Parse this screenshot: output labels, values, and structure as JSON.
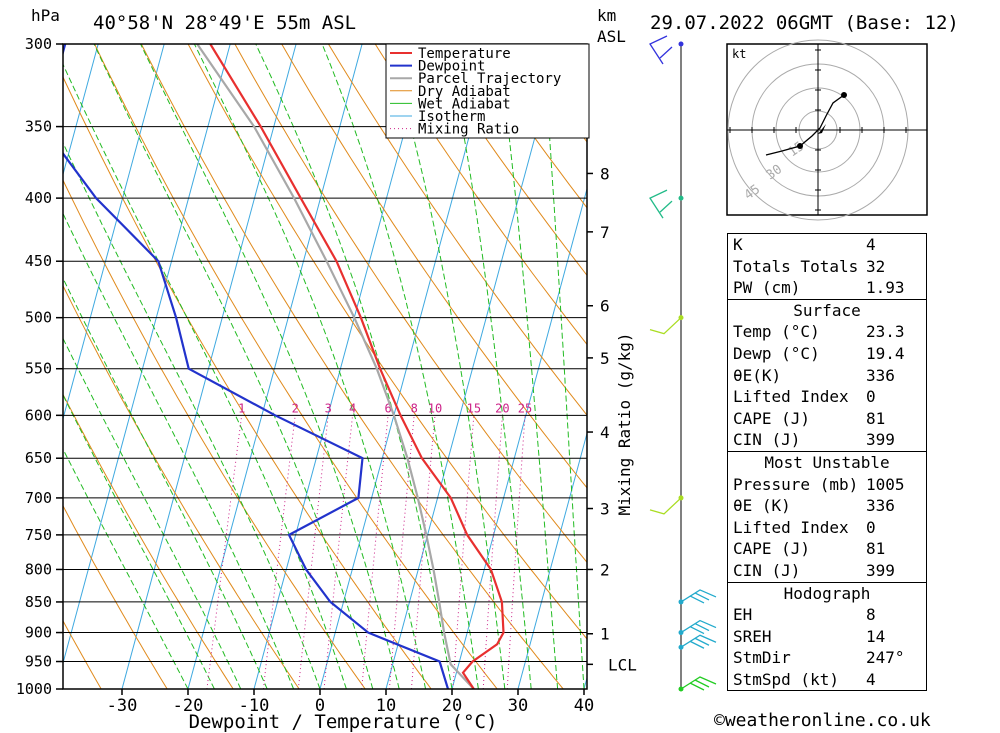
{
  "header": {
    "location": "40°58'N  28°49'E  55m  ASL",
    "datetime": "29.07.2022  06GMT  (Base: 12)",
    "pressure_unit": "hPa",
    "height_unit_top": "km",
    "height_unit_bottom": "ASL"
  },
  "chart_data": {
    "type": "skew-t",
    "xlabel": "Dewpoint / Temperature (°C)",
    "ylabel_right": "Mixing Ratio (g/kg)",
    "x_ticks": [
      -30,
      -20,
      -10,
      0,
      10,
      20,
      30,
      40
    ],
    "xlim": [
      -40,
      40
    ],
    "pressure_ticks": [
      300,
      350,
      400,
      450,
      500,
      550,
      600,
      650,
      700,
      750,
      800,
      850,
      900,
      950,
      1000
    ],
    "ylim_hpa": [
      1000,
      300
    ],
    "height_ticks_km": [
      {
        "km": "8",
        "p": 382
      },
      {
        "km": "7",
        "p": 426
      },
      {
        "km": "6",
        "p": 489
      },
      {
        "km": "5",
        "p": 539
      },
      {
        "km": "4",
        "p": 619
      },
      {
        "km": "3",
        "p": 714
      },
      {
        "km": "2",
        "p": 800
      },
      {
        "km": "1",
        "p": 902
      },
      {
        "km": "LCL",
        "p": 955
      }
    ],
    "legend": [
      "Temperature",
      "Dewpoint",
      "Parcel Trajectory",
      "Dry Adiabat",
      "Wet Adiabat",
      "Isotherm",
      "Mixing Ratio"
    ],
    "mixing_ratio_labels": [
      "1",
      "2",
      "3",
      "4",
      "6",
      "8",
      "10",
      "15",
      "20",
      "25"
    ],
    "series": [
      {
        "name": "Temperature",
        "color": "#e8302f",
        "points": [
          {
            "p": 1000,
            "t": 23.3
          },
          {
            "p": 970,
            "t": 21
          },
          {
            "p": 950,
            "t": 22
          },
          {
            "p": 920,
            "t": 25
          },
          {
            "p": 900,
            "t": 25.5
          },
          {
            "p": 850,
            "t": 24
          },
          {
            "p": 800,
            "t": 21
          },
          {
            "p": 750,
            "t": 16
          },
          {
            "p": 700,
            "t": 12
          },
          {
            "p": 650,
            "t": 6
          },
          {
            "p": 600,
            "t": 1
          },
          {
            "p": 550,
            "t": -4
          },
          {
            "p": 500,
            "t": -9
          },
          {
            "p": 450,
            "t": -15
          },
          {
            "p": 400,
            "t": -23
          },
          {
            "p": 350,
            "t": -32
          },
          {
            "p": 300,
            "t": -43
          }
        ]
      },
      {
        "name": "Dewpoint",
        "color": "#2233cc",
        "points": [
          {
            "p": 1000,
            "t": 19.4
          },
          {
            "p": 950,
            "t": 17
          },
          {
            "p": 900,
            "t": 5
          },
          {
            "p": 850,
            "t": -2
          },
          {
            "p": 800,
            "t": -7
          },
          {
            "p": 750,
            "t": -11
          },
          {
            "p": 700,
            "t": -2
          },
          {
            "p": 650,
            "t": -3
          },
          {
            "p": 600,
            "t": -18
          },
          {
            "p": 550,
            "t": -33
          },
          {
            "p": 500,
            "t": -37
          },
          {
            "p": 450,
            "t": -42
          },
          {
            "p": 400,
            "t": -54
          },
          {
            "p": 350,
            "t": -65
          },
          {
            "p": 300,
            "t": -65
          }
        ]
      },
      {
        "name": "Parcel Trajectory",
        "color": "#a8a8a8",
        "points": [
          {
            "p": 1000,
            "t": 23.3
          },
          {
            "p": 955,
            "t": 18.8
          },
          {
            "p": 900,
            "t": 16.5
          },
          {
            "p": 850,
            "t": 14.5
          },
          {
            "p": 800,
            "t": 12.3
          },
          {
            "p": 750,
            "t": 9.8
          },
          {
            "p": 700,
            "t": 7
          },
          {
            "p": 650,
            "t": 3.8
          },
          {
            "p": 600,
            "t": 0
          },
          {
            "p": 550,
            "t": -4.5
          },
          {
            "p": 500,
            "t": -10
          },
          {
            "p": 450,
            "t": -16.5
          },
          {
            "p": 400,
            "t": -24
          },
          {
            "p": 350,
            "t": -33
          },
          {
            "p": 300,
            "t": -45
          }
        ]
      }
    ],
    "wind_profile": [
      {
        "p": 300,
        "color": "#3333dd"
      },
      {
        "p": 400,
        "color": "#22bb88"
      },
      {
        "p": 500,
        "color": "#aadd22"
      },
      {
        "p": 700,
        "color": "#aadd22"
      },
      {
        "p": 850,
        "color": "#22aacc"
      },
      {
        "p": 900,
        "color": "#22aacc"
      },
      {
        "p": 925,
        "color": "#22aacc"
      },
      {
        "p": 1000,
        "color": "#22cc22"
      }
    ],
    "hodograph": {
      "unit": "kt",
      "ring_labels": [
        "15",
        "30",
        "45"
      ]
    }
  },
  "indices": {
    "general": [
      {
        "label": "K",
        "value": "4"
      },
      {
        "label": "Totals Totals",
        "value": "32"
      },
      {
        "label": "PW (cm)",
        "value": "1.93"
      }
    ],
    "surface": {
      "title": "Surface",
      "rows": [
        {
          "label": "Temp (°C)",
          "value": "23.3"
        },
        {
          "label": "Dewp (°C)",
          "value": "19.4"
        },
        {
          "label": "θE(K)",
          "value": "336"
        },
        {
          "label": "Lifted Index",
          "value": "0"
        },
        {
          "label": "CAPE (J)",
          "value": "81"
        },
        {
          "label": "CIN (J)",
          "value": "399"
        }
      ]
    },
    "most_unstable": {
      "title": "Most Unstable",
      "rows": [
        {
          "label": "Pressure (mb)",
          "value": "1005"
        },
        {
          "label": "θE (K)",
          "value": "336"
        },
        {
          "label": "Lifted Index",
          "value": "0"
        },
        {
          "label": "CAPE (J)",
          "value": "81"
        },
        {
          "label": "CIN (J)",
          "value": "399"
        }
      ]
    },
    "hodograph": {
      "title": "Hodograph",
      "rows": [
        {
          "label": "EH",
          "value": "8"
        },
        {
          "label": "SREH",
          "value": "14"
        },
        {
          "label": "StmDir",
          "value": "247°"
        },
        {
          "label": "StmSpd (kt)",
          "value": "4"
        }
      ]
    }
  },
  "footer": {
    "copyright": "©weatheronline.co.uk"
  }
}
